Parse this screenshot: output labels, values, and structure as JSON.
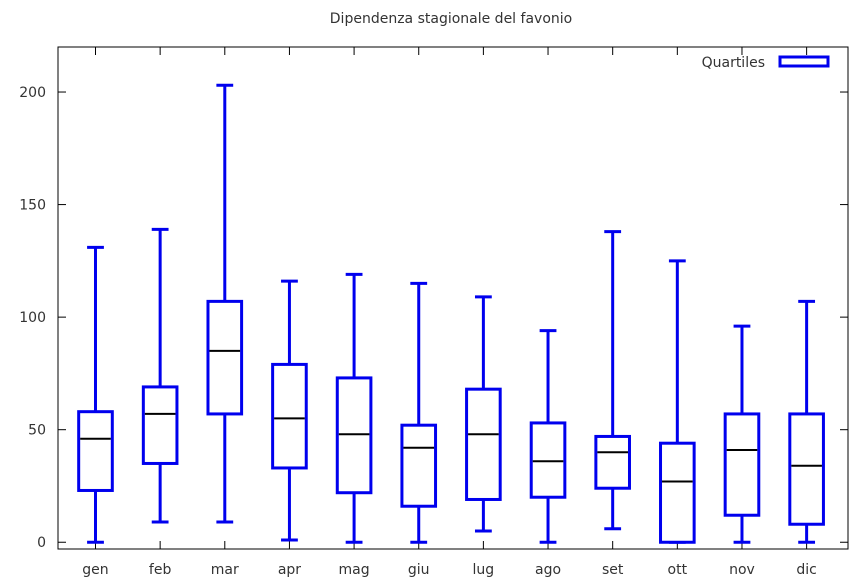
{
  "chart_data": {
    "type": "box",
    "title": "Dipendenza stagionale del favonio",
    "xlabel": "",
    "ylabel": "",
    "categories": [
      "gen",
      "feb",
      "mar",
      "apr",
      "mag",
      "giu",
      "lug",
      "ago",
      "set",
      "ott",
      "nov",
      "dic"
    ],
    "boxes": [
      {
        "min": 0,
        "q1": 23,
        "median": 46,
        "q3": 58,
        "max": 131
      },
      {
        "min": 9,
        "q1": 35,
        "median": 57,
        "q3": 69,
        "max": 139
      },
      {
        "min": 9,
        "q1": 57,
        "median": 85,
        "q3": 107,
        "max": 203
      },
      {
        "min": 1,
        "q1": 33,
        "median": 55,
        "q3": 79,
        "max": 116
      },
      {
        "min": 0,
        "q1": 22,
        "median": 48,
        "q3": 73,
        "max": 119
      },
      {
        "min": 0,
        "q1": 16,
        "median": 42,
        "q3": 52,
        "max": 115
      },
      {
        "min": 5,
        "q1": 19,
        "median": 48,
        "q3": 68,
        "max": 109
      },
      {
        "min": 0,
        "q1": 20,
        "median": 36,
        "q3": 53,
        "max": 94
      },
      {
        "min": 6,
        "q1": 24,
        "median": 40,
        "q3": 47,
        "max": 138
      },
      {
        "min": 0,
        "q1": 0,
        "median": 27,
        "q3": 44,
        "max": 125
      },
      {
        "min": 0,
        "q1": 12,
        "median": 41,
        "q3": 57,
        "max": 96
      },
      {
        "min": 0,
        "q1": 8,
        "median": 34,
        "q3": 57,
        "max": 107
      }
    ],
    "y_ticks": [
      0,
      50,
      100,
      150,
      200
    ],
    "ylim": [
      -3,
      220
    ],
    "legend": {
      "label": "Quartiles",
      "position": "top-right"
    },
    "grid": false,
    "colors": {
      "box": "#0000ee",
      "median": "#000000",
      "axis": "#000000"
    }
  }
}
